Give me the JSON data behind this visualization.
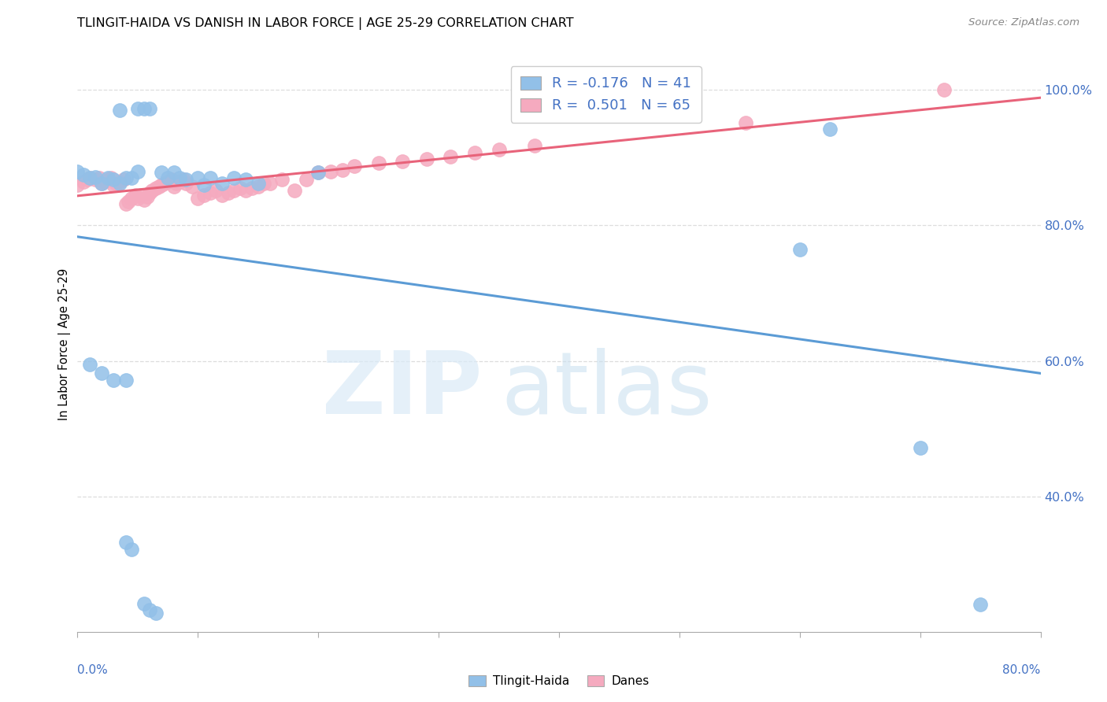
{
  "title": "TLINGIT-HAIDA VS DANISH IN LABOR FORCE | AGE 25-29 CORRELATION CHART",
  "source": "Source: ZipAtlas.com",
  "ylabel": "In Labor Force | Age 25-29",
  "xlim": [
    0.0,
    0.8
  ],
  "ylim": [
    0.2,
    1.05
  ],
  "yticks": [
    0.4,
    0.6,
    0.8,
    1.0
  ],
  "blue_R": -0.176,
  "blue_N": 41,
  "pink_R": 0.501,
  "pink_N": 65,
  "blue_color": "#92C0E8",
  "pink_color": "#F5AABF",
  "blue_line_color": "#5B9BD5",
  "pink_line_color": "#E8637A",
  "legend_blue_label": "Tlingit-Haida",
  "legend_pink_label": "Danes",
  "blue_x": [
    0.035,
    0.05,
    0.055,
    0.06,
    0.0,
    0.005,
    0.01,
    0.015,
    0.02,
    0.025,
    0.03,
    0.035,
    0.04,
    0.045,
    0.05,
    0.07,
    0.075,
    0.08,
    0.085,
    0.09,
    0.1,
    0.105,
    0.11,
    0.12,
    0.13,
    0.14,
    0.15,
    0.2,
    0.01,
    0.02,
    0.03,
    0.04,
    0.6,
    0.625,
    0.04,
    0.045,
    0.7,
    0.75,
    0.055,
    0.06,
    0.065
  ],
  "blue_y": [
    0.97,
    0.972,
    0.972,
    0.972,
    0.88,
    0.875,
    0.87,
    0.872,
    0.862,
    0.87,
    0.868,
    0.862,
    0.87,
    0.87,
    0.88,
    0.878,
    0.87,
    0.878,
    0.87,
    0.868,
    0.87,
    0.86,
    0.87,
    0.862,
    0.87,
    0.868,
    0.862,
    0.878,
    0.595,
    0.582,
    0.572,
    0.572,
    0.765,
    0.942,
    0.332,
    0.322,
    0.472,
    0.24,
    0.242,
    0.232,
    0.228
  ],
  "pink_x": [
    0.0,
    0.005,
    0.008,
    0.01,
    0.015,
    0.018,
    0.02,
    0.022,
    0.025,
    0.028,
    0.03,
    0.032,
    0.035,
    0.038,
    0.04,
    0.042,
    0.045,
    0.048,
    0.05,
    0.052,
    0.055,
    0.058,
    0.06,
    0.062,
    0.065,
    0.068,
    0.07,
    0.072,
    0.075,
    0.078,
    0.08,
    0.082,
    0.085,
    0.088,
    0.09,
    0.095,
    0.1,
    0.105,
    0.11,
    0.115,
    0.12,
    0.125,
    0.13,
    0.135,
    0.14,
    0.145,
    0.15,
    0.155,
    0.16,
    0.17,
    0.18,
    0.19,
    0.2,
    0.21,
    0.22,
    0.23,
    0.25,
    0.27,
    0.29,
    0.31,
    0.33,
    0.35,
    0.38,
    0.72,
    0.555
  ],
  "pink_y": [
    0.86,
    0.865,
    0.868,
    0.87,
    0.868,
    0.87,
    0.862,
    0.865,
    0.868,
    0.87,
    0.86,
    0.862,
    0.865,
    0.868,
    0.832,
    0.835,
    0.84,
    0.845,
    0.84,
    0.845,
    0.838,
    0.842,
    0.848,
    0.852,
    0.855,
    0.858,
    0.86,
    0.862,
    0.865,
    0.868,
    0.858,
    0.862,
    0.865,
    0.868,
    0.862,
    0.858,
    0.84,
    0.845,
    0.848,
    0.852,
    0.845,
    0.848,
    0.852,
    0.855,
    0.852,
    0.855,
    0.858,
    0.862,
    0.862,
    0.868,
    0.852,
    0.868,
    0.878,
    0.88,
    0.882,
    0.888,
    0.892,
    0.895,
    0.898,
    0.902,
    0.908,
    0.912,
    0.918,
    1.0,
    0.952
  ]
}
